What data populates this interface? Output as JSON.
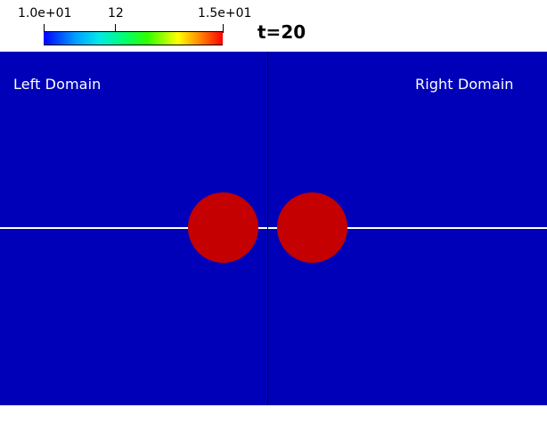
{
  "colorbar": {
    "min_label": "1.0e+01",
    "mid_label": "12",
    "max_label": "1.5e+01"
  },
  "time": {
    "label": "t=20"
  },
  "viewport": {
    "left_label": "Left Domain",
    "right_label": "Right Domain",
    "background_color": "#0000b8",
    "blob_color": "#c40000"
  }
}
